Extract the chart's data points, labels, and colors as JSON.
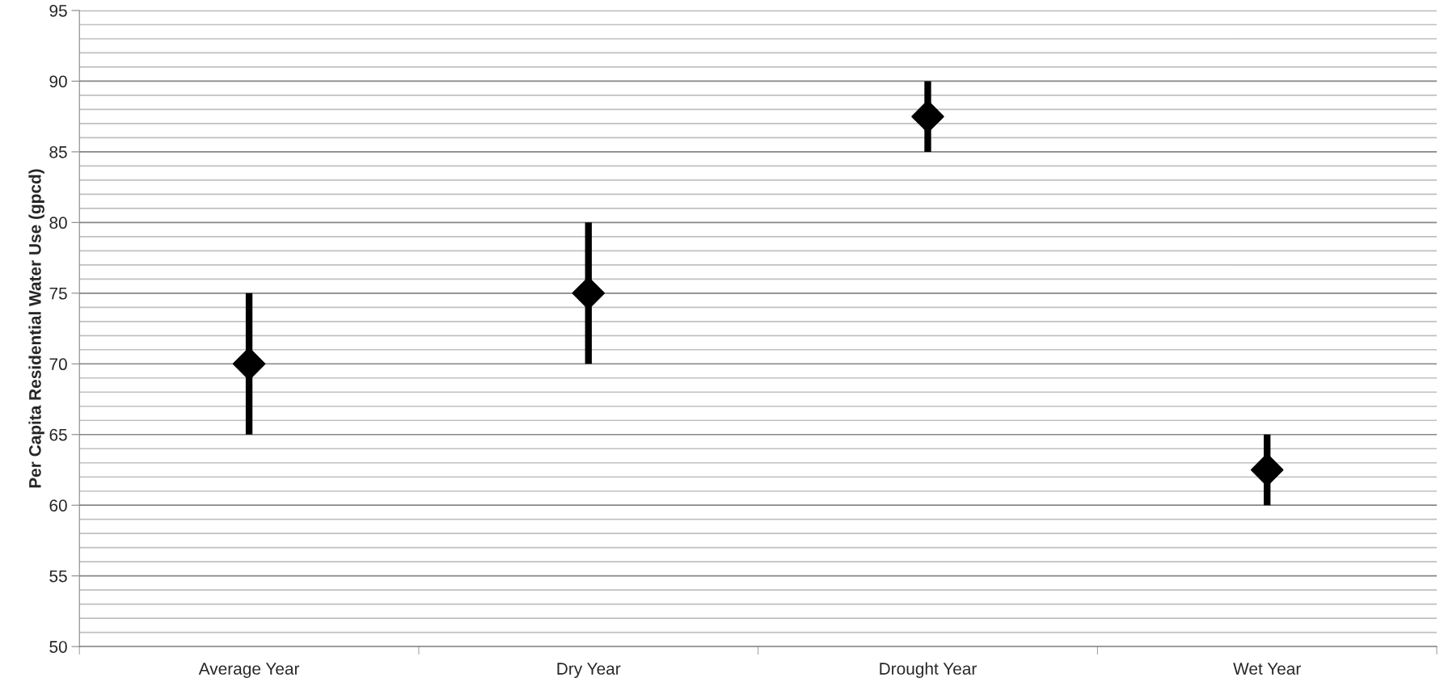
{
  "chart_data": {
    "type": "scatter",
    "ylabel": "Per Capita Residential Water Use (gpcd)",
    "categories": [
      "Average Year",
      "Dry Year",
      "Drought Year",
      "Wet Year"
    ],
    "values": [
      70,
      75,
      87.5,
      62.5
    ],
    "errors": [
      5,
      5,
      2.5,
      2.5
    ],
    "color": "#000000",
    "marker": "diamond",
    "ylim": [
      50,
      95
    ],
    "yticks": [
      50,
      {
        "value": 51,
        "label": null
      },
      {
        "value": 52,
        "label": null
      },
      {
        "value": 53,
        "label": null
      },
      {
        "value": 54,
        "label": null
      },
      55,
      {
        "value": 56,
        "label": null
      },
      {
        "value": 57,
        "label": null
      },
      {
        "value": 58,
        "label": null
      },
      {
        "value": 59,
        "label": null
      },
      60,
      {
        "value": 61,
        "label": null
      },
      {
        "value": 62,
        "label": null
      },
      {
        "value": 63,
        "label": null
      },
      {
        "value": 64,
        "label": null
      },
      65,
      {
        "value": 66,
        "label": null
      },
      {
        "value": 67,
        "label": null
      },
      {
        "value": 68,
        "label": null
      },
      {
        "value": 69,
        "label": null
      },
      70,
      {
        "value": 71,
        "label": null
      },
      {
        "value": 72,
        "label": null
      },
      {
        "value": 73,
        "label": null
      },
      {
        "value": 74,
        "label": null
      },
      75,
      {
        "value": 76,
        "label": null
      },
      {
        "value": 77,
        "label": null
      },
      {
        "value": 78,
        "label": null
      },
      {
        "value": 79,
        "label": null
      },
      80,
      {
        "value": 81,
        "label": null
      },
      {
        "value": 82,
        "label": null
      },
      {
        "value": 83,
        "label": null
      },
      {
        "value": 84,
        "label": null
      },
      85,
      {
        "value": 86,
        "label": null
      },
      {
        "value": 87,
        "label": null
      },
      {
        "value": 88,
        "label": null
      },
      {
        "value": 89,
        "label": null
      },
      90,
      {
        "value": 91,
        "label": null
      },
      {
        "value": 92,
        "label": null
      },
      {
        "value": 93,
        "label": null
      },
      {
        "value": 94,
        "label": null
      },
      95
    ],
    "grid": "y",
    "legend": false
  }
}
